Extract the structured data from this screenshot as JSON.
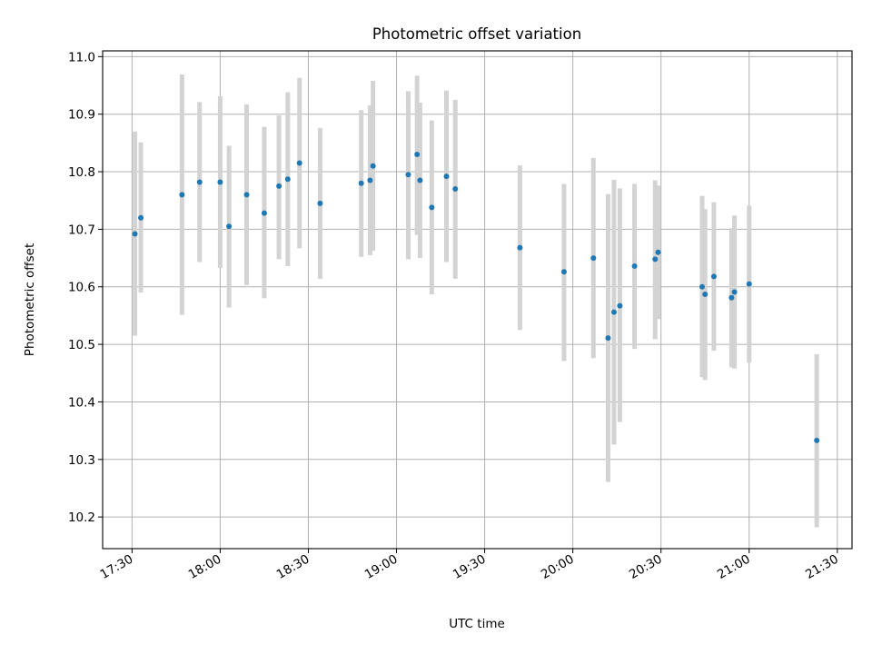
{
  "chart_data": {
    "type": "scatter",
    "title": "Photometric offset variation",
    "xlabel": "UTC time",
    "ylabel": "Photometric offset",
    "x_ticks": [
      "17:30",
      "18:00",
      "18:30",
      "19:00",
      "19:30",
      "20:00",
      "20:30",
      "21:00",
      "21:30"
    ],
    "y_ticks": [
      "10.2",
      "10.3",
      "10.4",
      "10.5",
      "10.6",
      "10.7",
      "10.8",
      "10.9",
      "11.0"
    ],
    "xlim": [
      "17:20",
      "21:35"
    ],
    "ylim": [
      10.145,
      11.01
    ],
    "grid": true,
    "colors": {
      "points": "#1f77b4",
      "errorbars": "#d3d3d3"
    },
    "series": [
      {
        "points": [
          {
            "time": "17:31",
            "value": 10.692,
            "low": 10.515,
            "high": 10.87
          },
          {
            "time": "17:33",
            "value": 10.72,
            "low": 10.59,
            "high": 10.851
          },
          {
            "time": "17:47",
            "value": 10.76,
            "low": 10.551,
            "high": 10.969
          },
          {
            "time": "17:53",
            "value": 10.782,
            "low": 10.643,
            "high": 10.921
          },
          {
            "time": "18:00",
            "value": 10.782,
            "low": 10.633,
            "high": 10.931
          },
          {
            "time": "18:03",
            "value": 10.705,
            "low": 10.564,
            "high": 10.845
          },
          {
            "time": "18:09",
            "value": 10.76,
            "low": 10.603,
            "high": 10.917
          },
          {
            "time": "18:15",
            "value": 10.728,
            "low": 10.58,
            "high": 10.878
          },
          {
            "time": "18:20",
            "value": 10.775,
            "low": 10.648,
            "high": 10.898
          },
          {
            "time": "18:23",
            "value": 10.787,
            "low": 10.636,
            "high": 10.938
          },
          {
            "time": "18:27",
            "value": 10.815,
            "low": 10.667,
            "high": 10.963
          },
          {
            "time": "18:34",
            "value": 10.745,
            "low": 10.614,
            "high": 10.876
          },
          {
            "time": "18:48",
            "value": 10.78,
            "low": 10.652,
            "high": 10.907
          },
          {
            "time": "18:51",
            "value": 10.785,
            "low": 10.655,
            "high": 10.915
          },
          {
            "time": "18:52",
            "value": 10.81,
            "low": 10.663,
            "high": 10.958
          },
          {
            "time": "19:04",
            "value": 10.795,
            "low": 10.648,
            "high": 10.94
          },
          {
            "time": "19:07",
            "value": 10.83,
            "low": 10.69,
            "high": 10.967
          },
          {
            "time": "19:08",
            "value": 10.785,
            "low": 10.65,
            "high": 10.92
          },
          {
            "time": "19:12",
            "value": 10.738,
            "low": 10.587,
            "high": 10.889
          },
          {
            "time": "19:17",
            "value": 10.792,
            "low": 10.643,
            "high": 10.941
          },
          {
            "time": "19:20",
            "value": 10.77,
            "low": 10.614,
            "high": 10.925
          },
          {
            "time": "19:42",
            "value": 10.668,
            "low": 10.525,
            "high": 10.811
          },
          {
            "time": "19:57",
            "value": 10.626,
            "low": 10.471,
            "high": 10.779
          },
          {
            "time": "20:07",
            "value": 10.65,
            "low": 10.476,
            "high": 10.824
          },
          {
            "time": "20:12",
            "value": 10.511,
            "low": 10.261,
            "high": 10.761
          },
          {
            "time": "20:14",
            "value": 10.556,
            "low": 10.326,
            "high": 10.786
          },
          {
            "time": "20:16",
            "value": 10.567,
            "low": 10.365,
            "high": 10.771
          },
          {
            "time": "20:21",
            "value": 10.636,
            "low": 10.492,
            "high": 10.779
          },
          {
            "time": "20:28",
            "value": 10.648,
            "low": 10.509,
            "high": 10.785
          },
          {
            "time": "20:29",
            "value": 10.66,
            "low": 10.544,
            "high": 10.776
          },
          {
            "time": "20:44",
            "value": 10.6,
            "low": 10.443,
            "high": 10.758
          },
          {
            "time": "20:45",
            "value": 10.587,
            "low": 10.438,
            "high": 10.735
          },
          {
            "time": "20:48",
            "value": 10.618,
            "low": 10.489,
            "high": 10.747
          },
          {
            "time": "20:54",
            "value": 10.581,
            "low": 10.46,
            "high": 10.702
          },
          {
            "time": "20:55",
            "value": 10.591,
            "low": 10.458,
            "high": 10.724
          },
          {
            "time": "21:00",
            "value": 10.605,
            "low": 10.468,
            "high": 10.741
          },
          {
            "time": "21:23",
            "value": 10.333,
            "low": 10.182,
            "high": 10.483
          }
        ]
      }
    ]
  }
}
